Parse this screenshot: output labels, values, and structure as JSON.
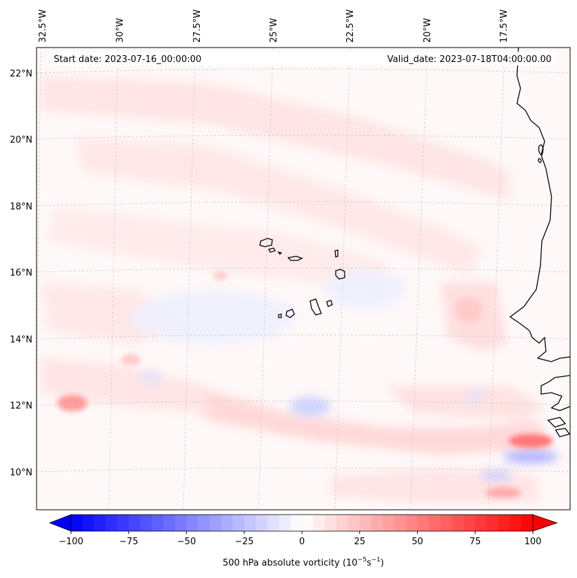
{
  "map": {
    "start_date_text": "Start date: 2023-07-16_00:00:00",
    "valid_date_text": "Valid_date: 2023-07-18T04:00:00.00",
    "lon_labels": [
      "32.5°W",
      "30°W",
      "27.5°W",
      "25°W",
      "22.5°W",
      "20°W",
      "17.5°W"
    ],
    "lat_labels": [
      "22°N",
      "20°N",
      "18°N",
      "16°N",
      "14°N",
      "12°N",
      "10°N"
    ],
    "extent": {
      "lon_min": -33,
      "lon_max": -15.8,
      "lat_min": 8.9,
      "lat_max": 22.8
    }
  },
  "colorbar": {
    "label": "500 hPa absolute vorticity (10$^{-5}$s$^{-1}$)",
    "label_text": "500 hPa absolute vorticity (10",
    "label_exp": "−5",
    "label_unit": "s",
    "label_unit_exp": "−1",
    "label_close": ")",
    "min": -100,
    "max": 100,
    "step": 5,
    "ticks": [
      -100,
      -75,
      -50,
      -25,
      0,
      25,
      50,
      75,
      100
    ],
    "tick_labels": [
      "−100",
      "−75",
      "−50",
      "−25",
      "0",
      "25",
      "50",
      "75",
      "100"
    ],
    "colormap": "bwr",
    "extend": "both"
  },
  "colors": {
    "cmap_low": "#0000ff",
    "cmap_mid": "#ffffff",
    "cmap_high": "#ff0000",
    "coastline": "#000000",
    "gridline": "#bdbdbd"
  },
  "fields": {
    "positive_features": [
      {
        "name": "12N 32W maximum",
        "lon": -32.2,
        "lat": 11.9,
        "value": 55
      },
      {
        "name": "10.8N 16.8W maximum",
        "lon": -16.8,
        "lat": 10.8,
        "value": 65
      },
      {
        "name": "9.5N 18.5W band",
        "lon": -18.5,
        "lat": 9.5,
        "value": 45
      },
      {
        "name": "15N 17.8W shelf",
        "lon": -17.8,
        "lat": 15.0,
        "value": 25
      }
    ],
    "negative_features": [
      {
        "name": "11.8N 23.5W minimum",
        "lon": -23.5,
        "lat": 11.8,
        "value": -30
      },
      {
        "name": "10.2N 17.8W minimum",
        "lon": -17.8,
        "lat": 10.2,
        "value": -35
      }
    ]
  }
}
